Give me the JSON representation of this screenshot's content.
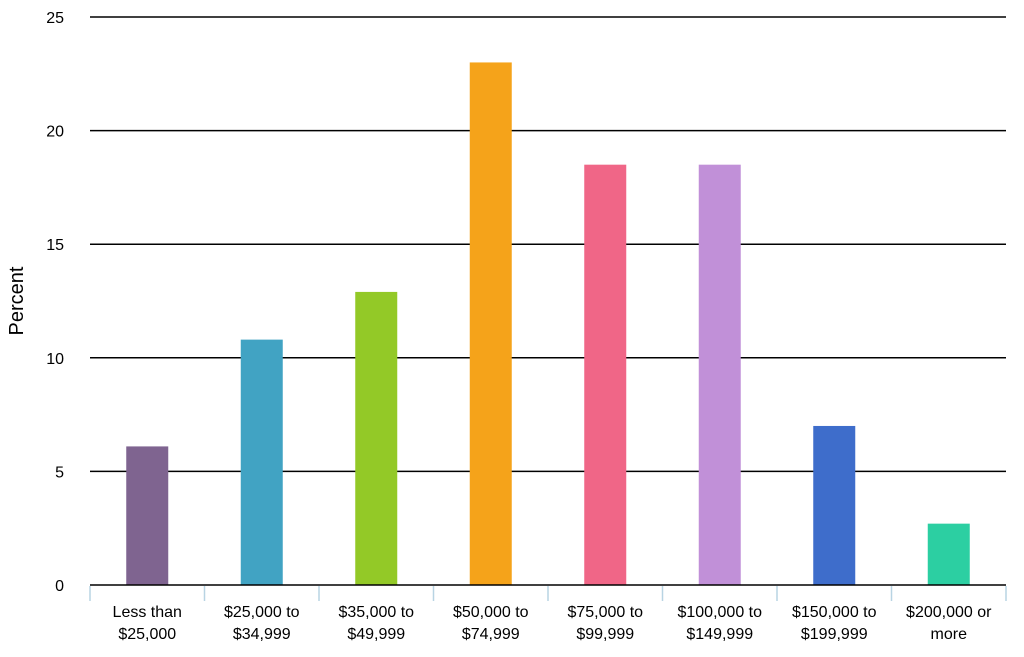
{
  "chart_data": {
    "type": "bar",
    "ylabel": "Percent",
    "ylim": [
      0,
      25
    ],
    "yticks": [
      "0",
      "5",
      "10",
      "15",
      "20",
      "25"
    ],
    "grid": true,
    "categories": [
      [
        "Less than",
        "$25,000"
      ],
      [
        "$25,000 to",
        "$34,999"
      ],
      [
        "$35,000 to",
        "$49,999"
      ],
      [
        "$50,000 to",
        "$74,999"
      ],
      [
        "$75,000 to",
        "$99,999"
      ],
      [
        "$100,000 to",
        "$149,999"
      ],
      [
        "$150,000 to",
        "$199,999"
      ],
      [
        "$200,000 or",
        "more"
      ]
    ],
    "values": [
      6.1,
      10.8,
      12.9,
      23.0,
      18.5,
      18.5,
      7.0,
      2.7
    ],
    "colors": [
      "#7f6490",
      "#41a3c3",
      "#93c927",
      "#f5a31a",
      "#f06687",
      "#c190d8",
      "#3e6dcb",
      "#2ccfa2"
    ]
  }
}
